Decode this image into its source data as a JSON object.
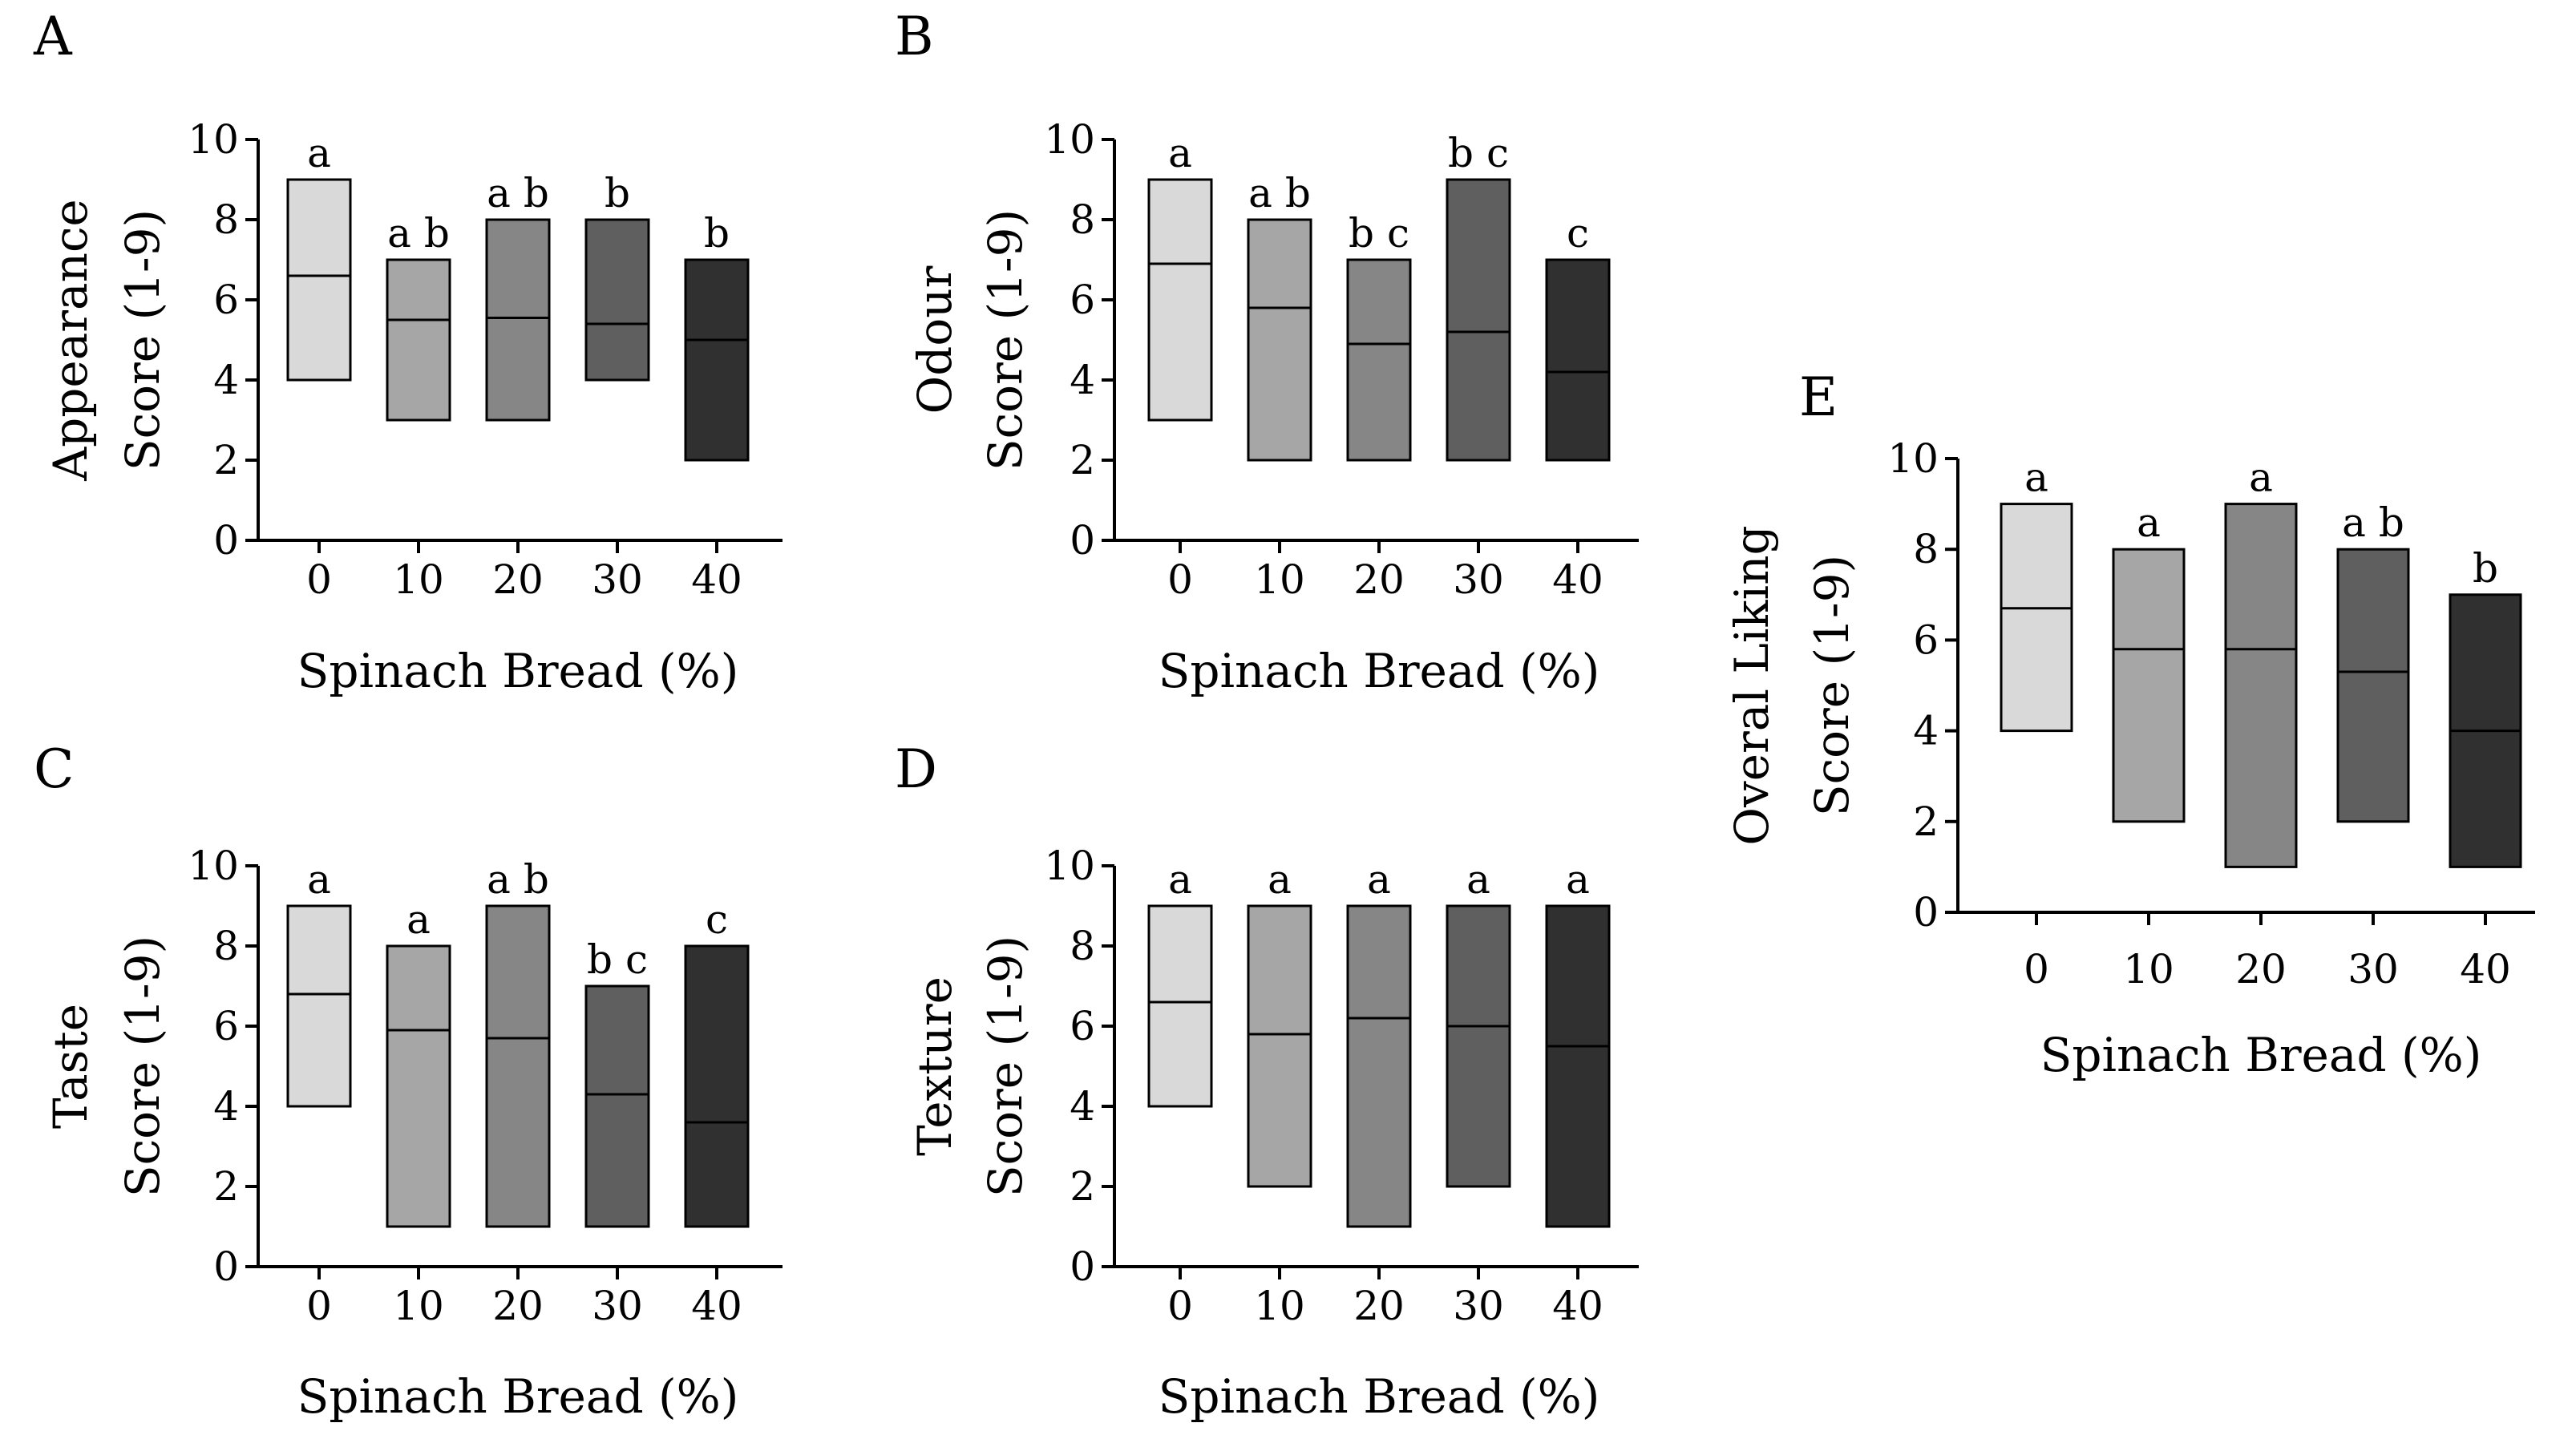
{
  "chart_data": [
    {
      "panel": "A",
      "type": "box",
      "ylabel_lines": [
        "Appearance",
        "Score (1-9)"
      ],
      "xlabel": "Spinach Bread (%)",
      "categories": [
        "0",
        "10",
        "20",
        "30",
        "40"
      ],
      "ylim": [
        0,
        10
      ],
      "yticks": [
        "0",
        "2",
        "4",
        "6",
        "8",
        "10"
      ],
      "boxes": [
        {
          "category": "0",
          "min": 4,
          "max": 9,
          "median": 6.6,
          "letters": "a",
          "color": "#d9d9d9"
        },
        {
          "category": "10",
          "min": 3,
          "max": 7,
          "median": 5.5,
          "letters": "a b",
          "color": "#a6a6a6"
        },
        {
          "category": "20",
          "min": 3,
          "max": 8,
          "median": 5.55,
          "letters": "a b",
          "color": "#868686"
        },
        {
          "category": "30",
          "min": 4,
          "max": 8,
          "median": 5.4,
          "letters": "b",
          "color": "#5f5f5f"
        },
        {
          "category": "40",
          "min": 2,
          "max": 7,
          "median": 5.0,
          "letters": "b",
          "color": "#303030"
        }
      ]
    },
    {
      "panel": "B",
      "type": "box",
      "ylabel_lines": [
        "Odour",
        "Score (1-9)"
      ],
      "xlabel": "Spinach Bread (%)",
      "categories": [
        "0",
        "10",
        "20",
        "30",
        "40"
      ],
      "ylim": [
        0,
        10
      ],
      "yticks": [
        "0",
        "2",
        "4",
        "6",
        "8",
        "10"
      ],
      "boxes": [
        {
          "category": "0",
          "min": 3,
          "max": 9,
          "median": 6.9,
          "letters": "a",
          "color": "#d9d9d9"
        },
        {
          "category": "10",
          "min": 2,
          "max": 8,
          "median": 5.8,
          "letters": "a b",
          "color": "#a6a6a6"
        },
        {
          "category": "20",
          "min": 2,
          "max": 7,
          "median": 4.9,
          "letters": "b c",
          "color": "#868686"
        },
        {
          "category": "30",
          "min": 2,
          "max": 9,
          "median": 5.2,
          "letters": "b c",
          "color": "#5f5f5f"
        },
        {
          "category": "40",
          "min": 2,
          "max": 7,
          "median": 4.2,
          "letters": "c",
          "color": "#303030"
        }
      ]
    },
    {
      "panel": "C",
      "type": "box",
      "ylabel_lines": [
        "Taste",
        "Score (1-9)"
      ],
      "xlabel": "Spinach Bread (%)",
      "categories": [
        "0",
        "10",
        "20",
        "30",
        "40"
      ],
      "ylim": [
        0,
        10
      ],
      "yticks": [
        "0",
        "2",
        "4",
        "6",
        "8",
        "10"
      ],
      "boxes": [
        {
          "category": "0",
          "min": 4,
          "max": 9,
          "median": 6.8,
          "letters": "a",
          "color": "#d9d9d9"
        },
        {
          "category": "10",
          "min": 1,
          "max": 8,
          "median": 5.9,
          "letters": "a",
          "color": "#a6a6a6"
        },
        {
          "category": "20",
          "min": 1,
          "max": 9,
          "median": 5.7,
          "letters": "a b",
          "color": "#868686"
        },
        {
          "category": "30",
          "min": 1,
          "max": 7,
          "median": 4.3,
          "letters": "b c",
          "color": "#5f5f5f"
        },
        {
          "category": "40",
          "min": 1,
          "max": 8,
          "median": 3.6,
          "letters": "c",
          "color": "#303030"
        }
      ]
    },
    {
      "panel": "D",
      "type": "box",
      "ylabel_lines": [
        "Texture",
        "Score (1-9)"
      ],
      "xlabel": "Spinach Bread (%)",
      "categories": [
        "0",
        "10",
        "20",
        "30",
        "40"
      ],
      "ylim": [
        0,
        10
      ],
      "yticks": [
        "0",
        "2",
        "4",
        "6",
        "8",
        "10"
      ],
      "boxes": [
        {
          "category": "0",
          "min": 4,
          "max": 9,
          "median": 6.6,
          "letters": "a",
          "color": "#d9d9d9"
        },
        {
          "category": "10",
          "min": 2,
          "max": 9,
          "median": 5.8,
          "letters": "a",
          "color": "#a6a6a6"
        },
        {
          "category": "20",
          "min": 1,
          "max": 9,
          "median": 6.2,
          "letters": "a",
          "color": "#868686"
        },
        {
          "category": "30",
          "min": 2,
          "max": 9,
          "median": 6.0,
          "letters": "a",
          "color": "#5f5f5f"
        },
        {
          "category": "40",
          "min": 1,
          "max": 9,
          "median": 5.5,
          "letters": "a",
          "color": "#303030"
        }
      ]
    },
    {
      "panel": "E",
      "type": "box",
      "ylabel_lines": [
        "Overal Liking",
        "Score (1-9)"
      ],
      "xlabel": "Spinach Bread (%)",
      "categories": [
        "0",
        "10",
        "20",
        "30",
        "40"
      ],
      "ylim": [
        0,
        10
      ],
      "yticks": [
        "0",
        "2",
        "4",
        "6",
        "8",
        "10"
      ],
      "boxes": [
        {
          "category": "0",
          "min": 4,
          "max": 9,
          "median": 6.7,
          "letters": "a",
          "color": "#d9d9d9"
        },
        {
          "category": "10",
          "min": 2,
          "max": 8,
          "median": 5.8,
          "letters": "a",
          "color": "#a6a6a6"
        },
        {
          "category": "20",
          "min": 1,
          "max": 9,
          "median": 5.8,
          "letters": "a",
          "color": "#868686"
        },
        {
          "category": "30",
          "min": 2,
          "max": 8,
          "median": 5.3,
          "letters": "a b",
          "color": "#5f5f5f"
        },
        {
          "category": "40",
          "min": 1,
          "max": 7,
          "median": 4.0,
          "letters": "b",
          "color": "#303030"
        }
      ]
    }
  ]
}
